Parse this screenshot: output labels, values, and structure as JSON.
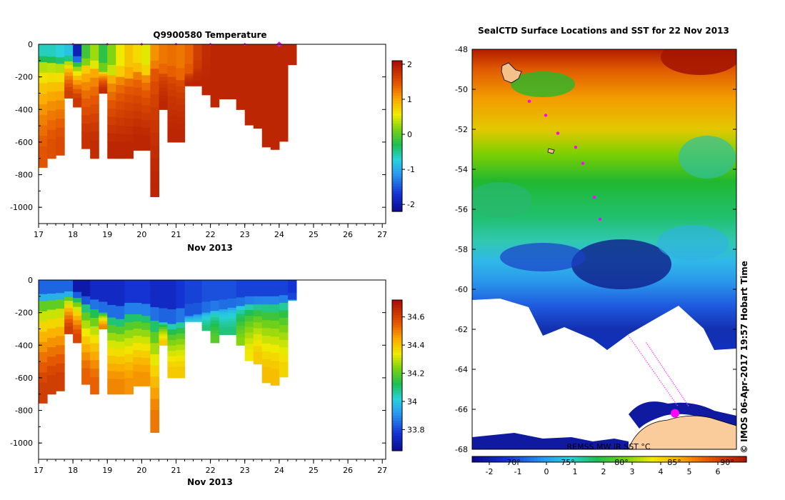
{
  "chart_data": [
    {
      "type": "heatmap",
      "id": "temperature",
      "title": "Q9900580  Temperature",
      "xlabel": "Nov 2013",
      "x_ticks": [
        17,
        18,
        19,
        20,
        21,
        22,
        23,
        24,
        25,
        26,
        27
      ],
      "xlim": [
        17,
        27.1
      ],
      "ylim": [
        -1100,
        0
      ],
      "y_ticks": [
        0,
        -200,
        -400,
        -600,
        -800,
        -1000
      ],
      "surface_markers": [
        18,
        19,
        20,
        21,
        22,
        23,
        24
      ],
      "colorbar": {
        "ticks": [
          2,
          1,
          0,
          -1,
          -2
        ],
        "range": [
          -2.2,
          2.1
        ]
      },
      "profiles": [
        {
          "t0": 17.0,
          "t1": 17.25,
          "depth": -755,
          "mixed": -110,
          "surface": -0.6,
          "deep": 1.5
        },
        {
          "t0": 17.25,
          "t1": 17.5,
          "depth": -700,
          "mixed": -115,
          "surface": -0.6,
          "deep": 1.55
        },
        {
          "t0": 17.5,
          "t1": 17.75,
          "depth": -680,
          "mixed": -120,
          "surface": -0.7,
          "deep": 1.6
        },
        {
          "t0": 17.75,
          "t1": 18.0,
          "depth": -330,
          "mixed": -105,
          "surface": -0.8,
          "deep": 1.7
        },
        {
          "t0": 18.0,
          "t1": 18.25,
          "depth": -385,
          "mixed": -110,
          "surface": -1.9,
          "deep": 1.75
        },
        {
          "t0": 18.25,
          "t1": 18.5,
          "depth": -640,
          "mixed": -130,
          "surface": -0.1,
          "deep": 1.8
        },
        {
          "t0": 18.5,
          "t1": 18.75,
          "depth": -700,
          "mixed": -150,
          "surface": 0.3,
          "deep": 1.85
        },
        {
          "t0": 18.75,
          "t1": 19.0,
          "depth": -300,
          "mixed": -170,
          "surface": -0.2,
          "deep": 1.85
        },
        {
          "t0": 19.0,
          "t1": 19.25,
          "depth": -700,
          "mixed": -190,
          "surface": 0.2,
          "deep": 1.9
        },
        {
          "t0": 19.25,
          "t1": 19.5,
          "depth": -700,
          "mixed": -200,
          "surface": 0.6,
          "deep": 1.9
        },
        {
          "t0": 19.5,
          "t1": 19.75,
          "depth": -700,
          "mixed": -210,
          "surface": 0.85,
          "deep": 1.9
        },
        {
          "t0": 19.75,
          "t1": 20.0,
          "depth": -650,
          "mixed": -170,
          "surface": 0.7,
          "deep": 1.9
        },
        {
          "t0": 20.0,
          "t1": 20.25,
          "depth": -650,
          "mixed": -190,
          "surface": 0.55,
          "deep": 1.9
        },
        {
          "t0": 20.25,
          "t1": 20.5,
          "depth": -935,
          "mixed": -150,
          "surface": 1.15,
          "deep": 1.9
        },
        {
          "t0": 20.5,
          "t1": 20.75,
          "depth": -400,
          "mixed": -180,
          "surface": 1.3,
          "deep": 1.9
        },
        {
          "t0": 20.75,
          "t1": 21.0,
          "depth": -600,
          "mixed": -200,
          "surface": 1.35,
          "deep": 1.9
        },
        {
          "t0": 21.0,
          "t1": 21.25,
          "depth": -600,
          "mixed": -220,
          "surface": 1.3,
          "deep": 1.9
        },
        {
          "t0": 21.25,
          "t1": 21.5,
          "depth": -255,
          "mixed": -180,
          "surface": 1.4,
          "deep": 1.9
        },
        {
          "t0": 21.5,
          "t1": 21.75,
          "depth": -255,
          "mixed": -150,
          "surface": 1.7,
          "deep": 1.9
        },
        {
          "t0": 21.75,
          "t1": 22.0,
          "depth": -310,
          "mixed": -120,
          "surface": 1.85,
          "deep": 1.9
        },
        {
          "t0": 22.0,
          "t1": 22.25,
          "depth": -385,
          "mixed": -100,
          "surface": 1.9,
          "deep": 1.9
        },
        {
          "t0": 22.25,
          "t1": 22.5,
          "depth": -335,
          "mixed": -80,
          "surface": 1.9,
          "deep": 1.9
        },
        {
          "t0": 22.5,
          "t1": 22.75,
          "depth": -335,
          "mixed": -80,
          "surface": 1.9,
          "deep": 1.9
        },
        {
          "t0": 22.75,
          "t1": 23.0,
          "depth": -400,
          "mixed": -80,
          "surface": 1.9,
          "deep": 1.9
        },
        {
          "t0": 23.0,
          "t1": 23.25,
          "depth": -495,
          "mixed": -80,
          "surface": 1.9,
          "deep": 1.9
        },
        {
          "t0": 23.25,
          "t1": 23.5,
          "depth": -515,
          "mixed": -80,
          "surface": 1.9,
          "deep": 1.9
        },
        {
          "t0": 23.5,
          "t1": 23.75,
          "depth": -630,
          "mixed": -80,
          "surface": 1.9,
          "deep": 1.9
        },
        {
          "t0": 23.75,
          "t1": 24.0,
          "depth": -645,
          "mixed": -80,
          "surface": 1.9,
          "deep": 1.9
        },
        {
          "t0": 24.0,
          "t1": 24.25,
          "depth": -595,
          "mixed": -80,
          "surface": 1.9,
          "deep": 1.9
        },
        {
          "t0": 24.25,
          "t1": 24.5,
          "depth": -125,
          "mixed": -80,
          "surface": 1.9,
          "deep": 1.9
        }
      ]
    },
    {
      "type": "heatmap",
      "id": "salinity",
      "title": "",
      "xlabel": "Nov 2013",
      "x_ticks": [
        17,
        18,
        19,
        20,
        21,
        22,
        23,
        24,
        25,
        26,
        27
      ],
      "xlim": [
        17,
        27.1
      ],
      "ylim": [
        -1100,
        0
      ],
      "y_ticks": [
        0,
        -200,
        -400,
        -600,
        -800,
        -1000
      ],
      "colorbar": {
        "ticks": [
          34.6,
          34.4,
          34.2,
          34,
          33.8
        ],
        "range": [
          33.65,
          34.72
        ]
      },
      "profiles": [
        {
          "t0": 17.0,
          "t1": 17.25,
          "depth": -755,
          "mixed": -130,
          "surface": 33.85,
          "deep": 34.62
        },
        {
          "t0": 17.25,
          "t1": 17.5,
          "depth": -700,
          "mixed": -125,
          "surface": 33.85,
          "deep": 34.62
        },
        {
          "t0": 17.5,
          "t1": 17.75,
          "depth": -680,
          "mixed": -120,
          "surface": 33.85,
          "deep": 34.62
        },
        {
          "t0": 17.75,
          "t1": 18.0,
          "depth": -330,
          "mixed": -105,
          "surface": 33.85,
          "deep": 34.62
        },
        {
          "t0": 18.0,
          "t1": 18.25,
          "depth": -385,
          "mixed": -110,
          "surface": 33.7,
          "deep": 34.6
        },
        {
          "t0": 18.25,
          "t1": 18.5,
          "depth": -640,
          "mixed": -150,
          "surface": 33.7,
          "deep": 34.55
        },
        {
          "t0": 18.5,
          "t1": 18.75,
          "depth": -700,
          "mixed": -180,
          "surface": 33.75,
          "deep": 34.55
        },
        {
          "t0": 18.75,
          "t1": 19.0,
          "depth": -300,
          "mixed": -200,
          "surface": 33.75,
          "deep": 34.5
        },
        {
          "t0": 19.0,
          "t1": 19.25,
          "depth": -700,
          "mixed": -230,
          "surface": 33.75,
          "deep": 34.5
        },
        {
          "t0": 19.25,
          "t1": 19.5,
          "depth": -700,
          "mixed": -240,
          "surface": 33.75,
          "deep": 34.5
        },
        {
          "t0": 19.5,
          "t1": 19.75,
          "depth": -700,
          "mixed": -210,
          "surface": 33.78,
          "deep": 34.48
        },
        {
          "t0": 19.75,
          "t1": 20.0,
          "depth": -650,
          "mixed": -210,
          "surface": 33.78,
          "deep": 34.48
        },
        {
          "t0": 20.0,
          "t1": 20.25,
          "depth": -650,
          "mixed": -220,
          "surface": 33.78,
          "deep": 34.48
        },
        {
          "t0": 20.25,
          "t1": 20.5,
          "depth": -935,
          "mixed": -250,
          "surface": 33.75,
          "deep": 34.52
        },
        {
          "t0": 20.5,
          "t1": 20.75,
          "depth": -400,
          "mixed": -260,
          "surface": 33.75,
          "deep": 34.4
        },
        {
          "t0": 20.75,
          "t1": 21.0,
          "depth": -600,
          "mixed": -270,
          "surface": 33.75,
          "deep": 34.4
        },
        {
          "t0": 21.0,
          "t1": 21.25,
          "depth": -600,
          "mixed": -260,
          "surface": 33.78,
          "deep": 34.4
        },
        {
          "t0": 21.25,
          "t1": 21.5,
          "depth": -255,
          "mixed": -220,
          "surface": 33.8,
          "deep": 34.0
        },
        {
          "t0": 21.5,
          "t1": 21.75,
          "depth": -255,
          "mixed": -210,
          "surface": 33.8,
          "deep": 34.0
        },
        {
          "t0": 21.75,
          "t1": 22.0,
          "depth": -310,
          "mixed": -200,
          "surface": 33.82,
          "deep": 34.1
        },
        {
          "t0": 22.0,
          "t1": 22.25,
          "depth": -385,
          "mixed": -190,
          "surface": 33.82,
          "deep": 34.2
        },
        {
          "t0": 22.25,
          "t1": 22.5,
          "depth": -335,
          "mixed": -180,
          "surface": 33.82,
          "deep": 34.1
        },
        {
          "t0": 22.5,
          "t1": 22.75,
          "depth": -335,
          "mixed": -170,
          "surface": 33.82,
          "deep": 34.1
        },
        {
          "t0": 22.75,
          "t1": 23.0,
          "depth": -400,
          "mixed": -160,
          "surface": 33.8,
          "deep": 34.25
        },
        {
          "t0": 23.0,
          "t1": 23.25,
          "depth": -495,
          "mixed": -150,
          "surface": 33.8,
          "deep": 34.35
        },
        {
          "t0": 23.25,
          "t1": 23.5,
          "depth": -515,
          "mixed": -150,
          "surface": 33.8,
          "deep": 34.4
        },
        {
          "t0": 23.5,
          "t1": 23.75,
          "depth": -630,
          "mixed": -150,
          "surface": 33.8,
          "deep": 34.42
        },
        {
          "t0": 23.75,
          "t1": 24.0,
          "depth": -645,
          "mixed": -150,
          "surface": 33.8,
          "deep": 34.42
        },
        {
          "t0": 24.0,
          "t1": 24.25,
          "depth": -595,
          "mixed": -140,
          "surface": 33.8,
          "deep": 34.38
        },
        {
          "t0": 24.25,
          "t1": 24.5,
          "depth": -125,
          "mixed": -120,
          "surface": 33.78,
          "deep": 33.95
        }
      ]
    },
    {
      "type": "heatmap",
      "id": "sst-map",
      "title": "SealCTD Surface Locations and SST for 22 Nov 2013",
      "ylim": [
        -68,
        -48
      ],
      "y_ticks": [
        -48,
        -50,
        -52,
        -54,
        -56,
        -58,
        -60,
        -62,
        -64,
        -66,
        -68
      ],
      "colorbar": {
        "ticks": [
          -2,
          -1,
          0,
          1,
          2,
          3,
          4,
          5,
          6
        ],
        "range": [
          -2.6,
          7.0
        ],
        "longitude_ticks": [
          "70°",
          "75°",
          "80°",
          "85°",
          "90°"
        ]
      },
      "source_label": "REMSS MW IR SST °C",
      "side_label": "© IMOS 06-Apr-2017 19:57 Hobart Time",
      "seal_positions": [
        {
          "lat": -50.6
        },
        {
          "lat": -51.3
        },
        {
          "lat": -52.2
        },
        {
          "lat": -52.9
        },
        {
          "lat": -53.7
        },
        {
          "lat": -55.4
        },
        {
          "lat": -56.5
        },
        {
          "lat": -66.2
        }
      ]
    }
  ]
}
